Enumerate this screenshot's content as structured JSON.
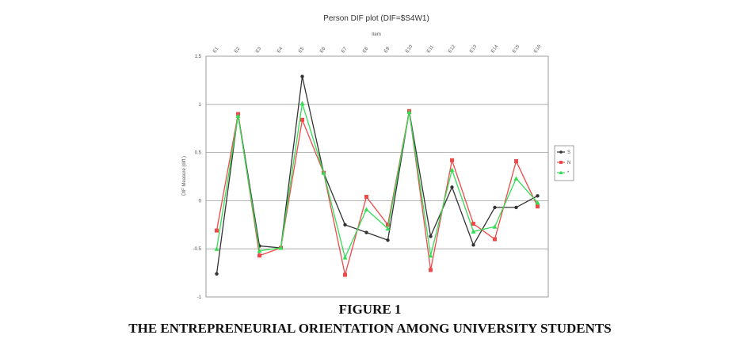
{
  "figure": {
    "number_label": "FIGURE 1",
    "caption": "THE ENTREPRENEURIAL ORIENTATION AMONG UNIVERSITY STUDENTS"
  },
  "chart_data": {
    "type": "line",
    "title": "Person DIF plot (DIF=$S4W1)",
    "xlabel": "Item",
    "ylabel": "DIF Measure (diff.)",
    "ylim": [
      -1,
      1.5
    ],
    "yticks": [
      -1,
      -0.5,
      0,
      0.5,
      1,
      1.5
    ],
    "grid": true,
    "legend_position": "right",
    "categories": [
      "E1",
      "E2",
      "E3",
      "E4",
      "E5",
      "E6",
      "E7",
      "E8",
      "E9",
      "E10",
      "E11",
      "E12",
      "E13",
      "E14",
      "E15",
      "E16"
    ],
    "series": [
      {
        "name": "S",
        "color": "#333333",
        "marker": "circle",
        "values": [
          -0.76,
          0.9,
          -0.47,
          -0.49,
          1.29,
          0.29,
          -0.25,
          -0.33,
          -0.41,
          0.93,
          -0.37,
          0.14,
          -0.46,
          -0.07,
          -0.07,
          0.05
        ]
      },
      {
        "name": "N",
        "color": "#ee4a4a",
        "marker": "square",
        "values": [
          -0.31,
          0.9,
          -0.57,
          -0.49,
          0.84,
          0.29,
          -0.77,
          0.04,
          -0.25,
          0.93,
          -0.72,
          0.42,
          -0.24,
          -0.4,
          0.41,
          -0.06
        ]
      },
      {
        "name": "*",
        "color": "#33dd55",
        "marker": "triangle",
        "values": [
          -0.5,
          0.88,
          -0.52,
          -0.49,
          1.01,
          0.29,
          -0.59,
          -0.09,
          -0.29,
          0.92,
          -0.57,
          0.32,
          -0.32,
          -0.27,
          0.23,
          -0.02
        ]
      }
    ]
  }
}
